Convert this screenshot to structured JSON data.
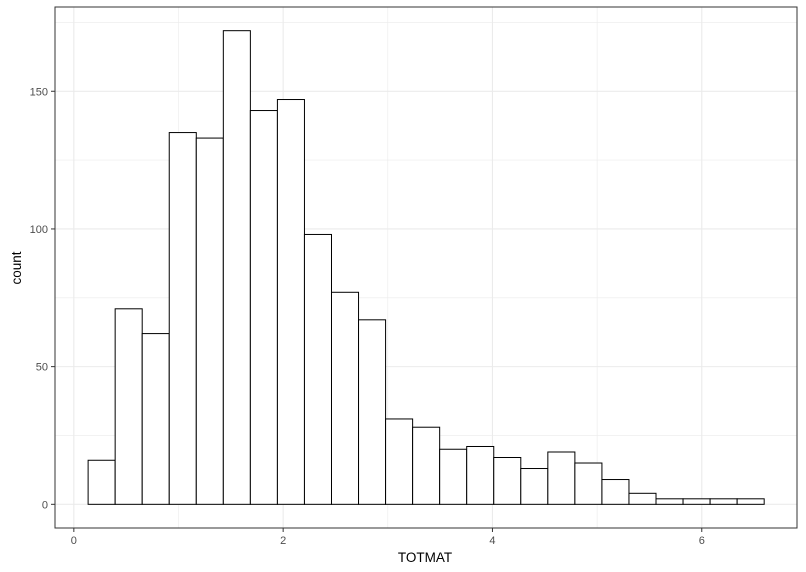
{
  "chart_data": {
    "type": "bar",
    "title": "",
    "xlabel": "TOTMAT",
    "ylabel": "count",
    "bin_width": 0.2584,
    "x_start": 0.1364,
    "bins": [
      {
        "x0": 0.1364,
        "x1": 0.3948,
        "count": 16
      },
      {
        "x0": 0.3948,
        "x1": 0.6532,
        "count": 71
      },
      {
        "x0": 0.6532,
        "x1": 0.9116,
        "count": 62
      },
      {
        "x0": 0.9116,
        "x1": 1.17,
        "count": 135
      },
      {
        "x0": 1.17,
        "x1": 1.4284,
        "count": 133
      },
      {
        "x0": 1.4284,
        "x1": 1.6868,
        "count": 172
      },
      {
        "x0": 1.6868,
        "x1": 1.9452,
        "count": 143
      },
      {
        "x0": 1.9452,
        "x1": 2.2036,
        "count": 147
      },
      {
        "x0": 2.2036,
        "x1": 2.462,
        "count": 98
      },
      {
        "x0": 2.462,
        "x1": 2.7204,
        "count": 77
      },
      {
        "x0": 2.7204,
        "x1": 2.9788,
        "count": 67
      },
      {
        "x0": 2.9788,
        "x1": 3.2372,
        "count": 31
      },
      {
        "x0": 3.2372,
        "x1": 3.4956,
        "count": 28
      },
      {
        "x0": 3.4956,
        "x1": 3.754,
        "count": 20
      },
      {
        "x0": 3.754,
        "x1": 4.0124,
        "count": 21
      },
      {
        "x0": 4.0124,
        "x1": 4.2708,
        "count": 17
      },
      {
        "x0": 4.2708,
        "x1": 4.5292,
        "count": 13
      },
      {
        "x0": 4.5292,
        "x1": 4.7876,
        "count": 19
      },
      {
        "x0": 4.7876,
        "x1": 5.046,
        "count": 15
      },
      {
        "x0": 5.046,
        "x1": 5.3044,
        "count": 9
      },
      {
        "x0": 5.3044,
        "x1": 5.5628,
        "count": 4
      },
      {
        "x0": 5.5628,
        "x1": 5.8212,
        "count": 2
      },
      {
        "x0": 5.8212,
        "x1": 6.0796,
        "count": 2
      },
      {
        "x0": 6.0796,
        "x1": 6.338,
        "count": 2
      },
      {
        "x0": 6.338,
        "x1": 6.5964,
        "count": 2
      }
    ],
    "xlim": [
      -0.18,
      6.91
    ],
    "ylim": [
      -8.6,
      180.6
    ],
    "x_ticks": [
      0,
      2,
      4,
      6
    ],
    "x_tick_labels": [
      "0",
      "2",
      "4",
      "6"
    ],
    "x_minor_ticks": [
      1,
      3,
      5
    ],
    "y_ticks": [
      0,
      50,
      100,
      150
    ],
    "y_tick_labels": [
      "0",
      "50",
      "100",
      "150"
    ],
    "y_minor_ticks": [
      25,
      75,
      125,
      175
    ],
    "grid": true,
    "legend": "none",
    "bar_fill": "#ffffff",
    "bar_stroke": "#000000",
    "grid_color": "#ebebeb",
    "panel_border_color": "#333333"
  }
}
